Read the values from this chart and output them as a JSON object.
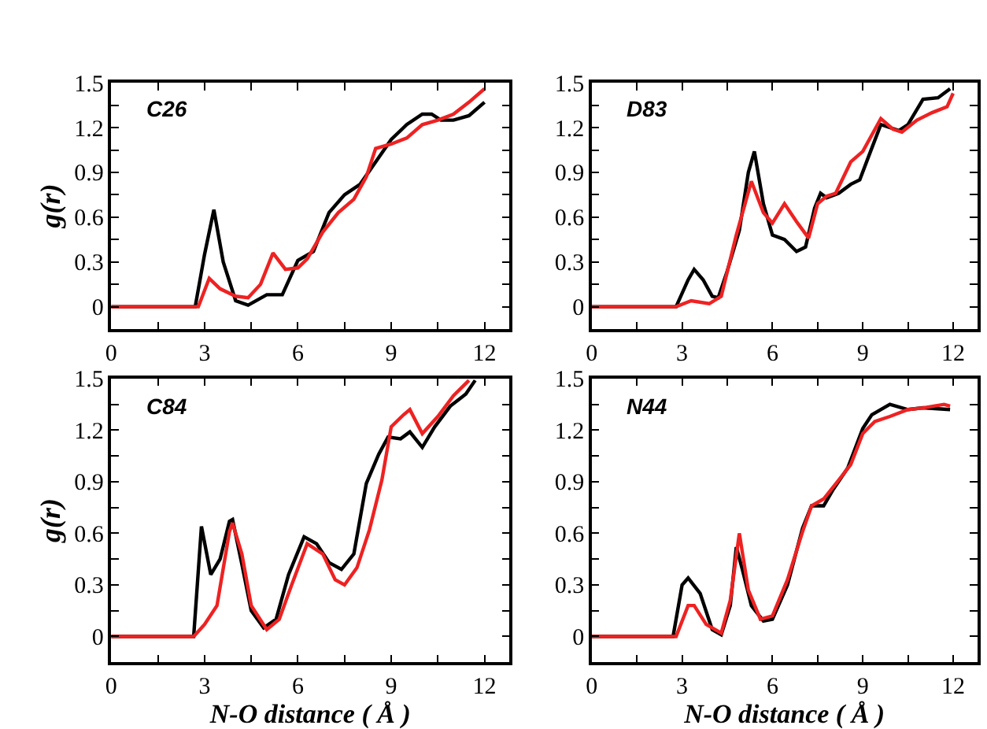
{
  "chart_data": [
    {
      "type": "line",
      "title": "C26",
      "ylabel": "g(r)",
      "xlim": [
        0,
        12.8
      ],
      "ylim": [
        -0.15,
        1.5
      ],
      "xticks": [
        0,
        {
          "value": 1.5,
          "label": null
        },
        3,
        {
          "value": 4.5,
          "label": null
        },
        6,
        {
          "value": 7.5,
          "label": null
        },
        9,
        {
          "value": 10.5,
          "label": null
        },
        12
      ],
      "yticks": [
        0,
        {
          "value": 0.15,
          "label": null
        },
        0.3,
        {
          "value": 0.45,
          "label": null
        },
        0.6,
        {
          "value": 0.75,
          "label": null
        },
        0.9,
        {
          "value": 1.05,
          "label": null
        },
        1.2,
        {
          "value": 1.35,
          "label": null
        },
        1.5
      ],
      "marker": "none",
      "line_style": "solid",
      "series": [
        {
          "color": "#000000",
          "x": [
            0,
            2.7,
            3.0,
            3.3,
            3.6,
            4.0,
            4.4,
            5.0,
            5.5,
            6.0,
            6.5,
            7.0,
            7.5,
            8.0,
            8.5,
            9.0,
            9.5,
            10.0,
            10.3,
            10.6,
            11.0,
            11.5,
            12.0
          ],
          "values": [
            0,
            0,
            0.35,
            0.65,
            0.3,
            0.04,
            0.01,
            0.08,
            0.08,
            0.31,
            0.37,
            0.63,
            0.75,
            0.82,
            0.97,
            1.12,
            1.22,
            1.29,
            1.29,
            1.25,
            1.25,
            1.28,
            1.37
          ]
        },
        {
          "color": "#ee2222",
          "x": [
            0,
            2.8,
            3.15,
            3.5,
            4.0,
            4.4,
            4.8,
            5.2,
            5.6,
            6.0,
            6.3,
            6.8,
            7.3,
            7.8,
            8.2,
            8.5,
            9.0,
            9.5,
            10.0,
            10.5,
            11.0,
            11.5,
            12.0
          ],
          "values": [
            0,
            0,
            0.19,
            0.12,
            0.07,
            0.06,
            0.15,
            0.36,
            0.25,
            0.26,
            0.32,
            0.5,
            0.63,
            0.72,
            0.87,
            1.06,
            1.09,
            1.13,
            1.22,
            1.25,
            1.29,
            1.37,
            1.46
          ]
        }
      ]
    },
    {
      "type": "line",
      "title": "D83",
      "xlim": [
        0,
        12.8
      ],
      "ylim": [
        -0.15,
        1.5
      ],
      "xticks": [
        0,
        {
          "value": 1.5,
          "label": null
        },
        3,
        {
          "value": 4.5,
          "label": null
        },
        6,
        {
          "value": 7.5,
          "label": null
        },
        9,
        {
          "value": 10.5,
          "label": null
        },
        12
      ],
      "yticks": [
        0,
        {
          "value": 0.15,
          "label": null
        },
        0.3,
        {
          "value": 0.45,
          "label": null
        },
        0.6,
        {
          "value": 0.75,
          "label": null
        },
        0.9,
        {
          "value": 1.05,
          "label": null
        },
        1.2,
        {
          "value": 1.35,
          "label": null
        },
        1.5
      ],
      "marker": "none",
      "line_style": "solid",
      "series": [
        {
          "color": "#000000",
          "x": [
            0,
            2.8,
            3.2,
            3.4,
            3.7,
            4.0,
            4.2,
            4.5,
            4.9,
            5.2,
            5.4,
            5.7,
            6.0,
            6.4,
            6.8,
            7.1,
            7.4,
            7.6,
            7.8,
            8.2,
            8.6,
            8.9,
            9.2,
            9.6,
            10.2,
            10.5,
            11.0,
            11.5,
            11.9
          ],
          "values": [
            0,
            0,
            0.18,
            0.25,
            0.18,
            0.07,
            0.06,
            0.24,
            0.51,
            0.9,
            1.04,
            0.69,
            0.48,
            0.45,
            0.37,
            0.4,
            0.66,
            0.76,
            0.73,
            0.76,
            0.82,
            0.85,
            1.01,
            1.22,
            1.18,
            1.22,
            1.39,
            1.4,
            1.46
          ]
        },
        {
          "color": "#ee2222",
          "x": [
            0,
            2.8,
            3.3,
            3.9,
            4.3,
            4.8,
            5.3,
            5.7,
            6.0,
            6.4,
            6.8,
            7.2,
            7.5,
            7.8,
            8.1,
            8.6,
            9.0,
            9.6,
            10.0,
            10.3,
            10.8,
            11.3,
            11.8,
            12.0
          ],
          "values": [
            0,
            0,
            0.04,
            0.02,
            0.07,
            0.48,
            0.84,
            0.63,
            0.56,
            0.69,
            0.57,
            0.46,
            0.69,
            0.74,
            0.76,
            0.97,
            1.04,
            1.26,
            1.19,
            1.17,
            1.25,
            1.3,
            1.34,
            1.43
          ]
        }
      ]
    },
    {
      "type": "line",
      "title": "C84",
      "ylabel": "g(r)",
      "xlabel": "N-O distance ( Å )",
      "xlim": [
        0,
        12.8
      ],
      "ylim": [
        -0.15,
        1.5
      ],
      "xticks": [
        0,
        {
          "value": 1.5,
          "label": null
        },
        3,
        {
          "value": 4.5,
          "label": null
        },
        6,
        {
          "value": 7.5,
          "label": null
        },
        9,
        {
          "value": 10.5,
          "label": null
        },
        12
      ],
      "yticks": [
        0,
        {
          "value": 0.15,
          "label": null
        },
        0.3,
        {
          "value": 0.45,
          "label": null
        },
        0.6,
        {
          "value": 0.75,
          "label": null
        },
        0.9,
        {
          "value": 1.05,
          "label": null
        },
        1.2,
        {
          "value": 1.35,
          "label": null
        },
        1.5
      ],
      "marker": "none",
      "line_style": "solid",
      "series": [
        {
          "color": "#000000",
          "x": [
            0,
            2.65,
            2.9,
            3.2,
            3.5,
            3.8,
            3.9,
            4.2,
            4.5,
            4.9,
            5.3,
            5.7,
            6.2,
            6.6,
            7.0,
            7.4,
            7.8,
            8.2,
            8.6,
            8.9,
            9.3,
            9.6,
            10.0,
            10.4,
            10.9,
            11.4,
            11.7
          ],
          "values": [
            0,
            0,
            0.64,
            0.36,
            0.45,
            0.67,
            0.68,
            0.42,
            0.15,
            0.05,
            0.1,
            0.36,
            0.58,
            0.54,
            0.43,
            0.39,
            0.48,
            0.89,
            1.06,
            1.16,
            1.15,
            1.19,
            1.1,
            1.22,
            1.34,
            1.41,
            1.49
          ]
        },
        {
          "color": "#ee2222",
          "x": [
            0,
            2.65,
            3.0,
            3.4,
            3.8,
            3.9,
            4.2,
            4.5,
            5.0,
            5.4,
            5.8,
            6.3,
            6.8,
            7.2,
            7.5,
            7.9,
            8.3,
            8.7,
            9.0,
            9.4,
            9.6,
            10.0,
            10.5,
            11.0,
            11.5
          ],
          "values": [
            0,
            0,
            0.07,
            0.18,
            0.61,
            0.66,
            0.48,
            0.18,
            0.04,
            0.1,
            0.3,
            0.54,
            0.48,
            0.33,
            0.3,
            0.4,
            0.62,
            0.91,
            1.22,
            1.29,
            1.32,
            1.18,
            1.28,
            1.4,
            1.49
          ]
        }
      ]
    },
    {
      "type": "line",
      "title": "N44",
      "xlabel": "N-O distance ( Å )",
      "xlim": [
        0,
        12.8
      ],
      "ylim": [
        -0.15,
        1.5
      ],
      "xticks": [
        0,
        {
          "value": 1.5,
          "label": null
        },
        3,
        {
          "value": 4.5,
          "label": null
        },
        6,
        {
          "value": 7.5,
          "label": null
        },
        9,
        {
          "value": 10.5,
          "label": null
        },
        12
      ],
      "yticks": [
        0,
        {
          "value": 0.15,
          "label": null
        },
        0.3,
        {
          "value": 0.45,
          "label": null
        },
        0.6,
        {
          "value": 0.75,
          "label": null
        },
        0.9,
        {
          "value": 1.05,
          "label": null
        },
        1.2,
        {
          "value": 1.35,
          "label": null
        },
        1.5
      ],
      "marker": "none",
      "line_style": "solid",
      "series": [
        {
          "color": "#000000",
          "x": [
            0,
            2.7,
            3.0,
            3.2,
            3.6,
            4.0,
            4.3,
            4.6,
            4.8,
            5.0,
            5.3,
            5.7,
            6.0,
            6.5,
            7.0,
            7.3,
            7.7,
            8.0,
            8.5,
            9.0,
            9.3,
            9.9,
            10.5,
            11.0,
            11.9
          ],
          "values": [
            0,
            0,
            0.3,
            0.34,
            0.25,
            0.04,
            0.01,
            0.18,
            0.52,
            0.39,
            0.18,
            0.09,
            0.1,
            0.3,
            0.63,
            0.76,
            0.76,
            0.85,
            0.98,
            1.21,
            1.29,
            1.35,
            1.32,
            1.33,
            1.32
          ]
        },
        {
          "color": "#ee2222",
          "x": [
            0,
            2.8,
            3.2,
            3.4,
            3.8,
            4.3,
            4.6,
            4.9,
            5.2,
            5.6,
            6.0,
            6.5,
            7.0,
            7.3,
            7.7,
            8.2,
            8.6,
            9.0,
            9.4,
            9.9,
            10.5,
            11.0,
            11.7,
            11.9
          ],
          "values": [
            0,
            0,
            0.18,
            0.18,
            0.07,
            0.02,
            0.21,
            0.6,
            0.27,
            0.1,
            0.12,
            0.33,
            0.61,
            0.76,
            0.8,
            0.91,
            1.0,
            1.18,
            1.25,
            1.28,
            1.32,
            1.33,
            1.35,
            1.34
          ]
        }
      ]
    }
  ]
}
